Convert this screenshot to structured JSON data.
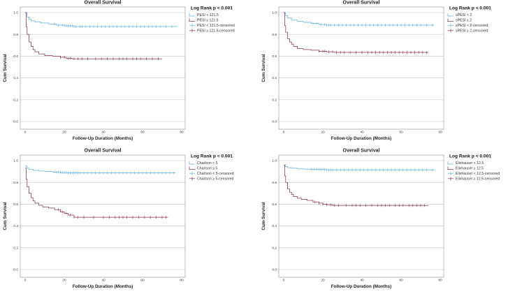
{
  "colors": {
    "group1": "#5fb0e3",
    "group2": "#8a3050"
  },
  "chart_data": [
    {
      "type": "line",
      "title": "Overall Survival",
      "xlabel": "Follow-Up Duration (Months)",
      "ylabel": "Cum Survival",
      "annotation": "Log Rank p < 0.001",
      "xlim": [
        0,
        80
      ],
      "ylim": [
        0,
        1.0
      ],
      "xticks": [
        "0",
        "20",
        "40",
        "60",
        "80"
      ],
      "yticks": [
        "0.0",
        "0.2",
        "0.4",
        "0.6",
        "0.8",
        "1.0"
      ],
      "grid": "horizontal",
      "legend_position": "right",
      "legend": [
        "PESI < 121.5",
        "PESI ≥ 121.5",
        "PESI < 121.5-censored",
        "PESI ≥ 121.5-censored"
      ],
      "series": [
        {
          "name": "PESI < 121.5",
          "x": [
            0,
            1,
            2,
            3,
            5,
            8,
            12,
            16,
            20,
            25,
            78
          ],
          "y": [
            1.0,
            0.96,
            0.94,
            0.925,
            0.915,
            0.905,
            0.895,
            0.885,
            0.878,
            0.872,
            0.872
          ],
          "censored_x": [
            15,
            17,
            19,
            20,
            21,
            22,
            23,
            24,
            25,
            26,
            28,
            29,
            31,
            33,
            35,
            37,
            39,
            41,
            43,
            45,
            47,
            49,
            51,
            53,
            55,
            57,
            59,
            61,
            63,
            65,
            67,
            69,
            72,
            75
          ]
        },
        {
          "name": "PESI ≥ 121.5",
          "x": [
            0,
            0.5,
            1,
            2,
            3,
            4,
            5,
            7,
            10,
            14,
            18,
            21,
            24,
            70
          ],
          "y": [
            1.0,
            0.87,
            0.8,
            0.73,
            0.69,
            0.66,
            0.64,
            0.62,
            0.605,
            0.6,
            0.59,
            0.58,
            0.575,
            0.575
          ],
          "censored_x": [
            18,
            20,
            22,
            23,
            25,
            27,
            29,
            32,
            36,
            39,
            42,
            45,
            48,
            50,
            52,
            55,
            57,
            59,
            62,
            65,
            68
          ]
        }
      ]
    },
    {
      "type": "line",
      "title": "Overall Survival",
      "xlabel": "Follow-Up Duration (Months)",
      "ylabel": "Cum Survival",
      "annotation": "Log Rank p < 0.001",
      "xlim": [
        0,
        80
      ],
      "ylim": [
        0,
        1.0
      ],
      "xticks": [
        "0",
        "20",
        "40",
        "60",
        "80"
      ],
      "yticks": [
        "0.0",
        "0.2",
        "0.4",
        "0.6",
        "0.8",
        "1.0"
      ],
      "grid": "horizontal",
      "legend_position": "right",
      "legend": [
        "sPESI < 2",
        "sPESI ≥ 2",
        "sPESI < 2-censored",
        "sPESI ≥ 2-censored"
      ],
      "series": [
        {
          "name": "sPESI < 2",
          "x": [
            0,
            1,
            2,
            4,
            7,
            10,
            14,
            18,
            22,
            25,
            77
          ],
          "y": [
            1.0,
            0.97,
            0.95,
            0.93,
            0.92,
            0.91,
            0.9,
            0.89,
            0.885,
            0.885,
            0.885
          ],
          "censored_x": [
            15,
            17,
            19,
            21,
            22,
            23,
            24,
            26,
            28,
            30,
            32,
            34,
            36,
            38,
            40,
            42,
            44,
            46,
            48,
            50,
            52,
            54,
            56,
            58,
            60,
            62,
            64,
            66,
            68,
            70,
            73,
            76
          ]
        },
        {
          "name": "sPESI ≥ 2",
          "x": [
            0,
            0.5,
            1,
            2,
            3,
            4,
            5,
            7,
            10,
            14,
            18,
            22,
            26,
            74
          ],
          "y": [
            1.0,
            0.88,
            0.82,
            0.76,
            0.73,
            0.71,
            0.69,
            0.67,
            0.66,
            0.655,
            0.645,
            0.64,
            0.635,
            0.635
          ],
          "censored_x": [
            18,
            20,
            21,
            23,
            25,
            27,
            29,
            31,
            34,
            37,
            40,
            43,
            45,
            47,
            49,
            51,
            53,
            55,
            57,
            59,
            61,
            63,
            65,
            67,
            69,
            71,
            73
          ]
        }
      ]
    },
    {
      "type": "line",
      "title": "Overall Survival",
      "xlabel": "Follow-Up Duration (Months)",
      "ylabel": "Cum Survival",
      "annotation": "Log Rank p < 0.001",
      "xlim": [
        0,
        80
      ],
      "ylim": [
        0,
        1.0
      ],
      "xticks": [
        "0",
        "20",
        "40",
        "60",
        "80"
      ],
      "yticks": [
        "0.0",
        "0.2",
        "0.4",
        "0.6",
        "0.8",
        "1.0"
      ],
      "grid": "horizontal",
      "legend_position": "right",
      "legend": [
        "Charlson < 5",
        "Charlson ≥ 5",
        "Charlson < 5-censored",
        "Charlson ≥ 5-censored"
      ],
      "series": [
        {
          "name": "Charlson < 5",
          "x": [
            0,
            1,
            2,
            4,
            7,
            10,
            14,
            18,
            22,
            77
          ],
          "y": [
            0.95,
            0.93,
            0.92,
            0.91,
            0.905,
            0.9,
            0.895,
            0.89,
            0.888,
            0.888
          ],
          "censored_x": [
            15,
            16,
            17,
            18,
            19,
            20,
            21,
            22,
            23,
            24,
            25,
            26,
            27,
            28,
            30,
            32,
            34,
            36,
            38,
            40,
            42,
            44,
            46,
            48,
            50,
            52,
            54,
            56,
            58,
            60,
            62,
            64,
            66,
            68,
            70,
            72,
            74,
            76
          ]
        },
        {
          "name": "Charlson ≥ 5",
          "x": [
            0,
            0.5,
            1,
            2,
            3,
            4,
            5,
            7,
            9,
            12,
            15,
            18,
            20,
            22,
            25,
            73
          ],
          "y": [
            0.93,
            0.83,
            0.76,
            0.7,
            0.66,
            0.63,
            0.61,
            0.59,
            0.575,
            0.565,
            0.55,
            0.53,
            0.515,
            0.5,
            0.48,
            0.48
          ],
          "censored_x": [
            17,
            19,
            21,
            23,
            25,
            27,
            30,
            35,
            40,
            43,
            46,
            48,
            50,
            52,
            55,
            58,
            61,
            64,
            67,
            70,
            72
          ]
        }
      ]
    },
    {
      "type": "line",
      "title": "Overall Survival",
      "xlabel": "Follow-Up Duration (Months)",
      "ylabel": "Cum Survival",
      "annotation": "Log Rank p < 0.001",
      "xlim": [
        0,
        80
      ],
      "ylim": [
        0,
        1.0
      ],
      "xticks": [
        "0",
        "20",
        "40",
        "60",
        "80"
      ],
      "yticks": [
        "0.0",
        "0.2",
        "0.4",
        "0.6",
        "0.8",
        "1.0"
      ],
      "grid": "horizontal",
      "legend_position": "right",
      "legend": [
        "Elixhauser < 12.5",
        "Elixhauser ≥ 12.5",
        "Elixhauser < 12.5-censored",
        "Elixhauser ≥ 12.5-censored"
      ],
      "series": [
        {
          "name": "Elixhauser < 12.5",
          "x": [
            0,
            1,
            2,
            4,
            7,
            10,
            14,
            18,
            22,
            77
          ],
          "y": [
            0.96,
            0.945,
            0.935,
            0.93,
            0.925,
            0.922,
            0.92,
            0.918,
            0.915,
            0.915
          ],
          "censored_x": [
            14,
            15,
            16,
            17,
            18,
            19,
            20,
            21,
            22,
            23,
            24,
            25,
            27,
            29,
            31,
            33,
            35,
            37,
            39,
            41,
            43,
            45,
            47,
            49,
            51,
            53,
            55,
            57,
            59,
            61,
            63,
            65,
            67,
            69,
            71,
            73,
            76
          ]
        },
        {
          "name": "Elixhauser ≥ 12.5",
          "x": [
            0,
            0.5,
            1,
            2,
            3,
            4,
            5,
            7,
            9,
            12,
            15,
            18,
            20,
            22,
            25,
            74
          ],
          "y": [
            0.96,
            0.86,
            0.8,
            0.74,
            0.71,
            0.69,
            0.67,
            0.655,
            0.645,
            0.635,
            0.62,
            0.61,
            0.6,
            0.595,
            0.588,
            0.588
          ],
          "censored_x": [
            16,
            18,
            20,
            22,
            24,
            26,
            28,
            32,
            35,
            37,
            39,
            42,
            45,
            48,
            50,
            52,
            54,
            57,
            59,
            61,
            64,
            66,
            68,
            70,
            72
          ]
        }
      ]
    }
  ]
}
